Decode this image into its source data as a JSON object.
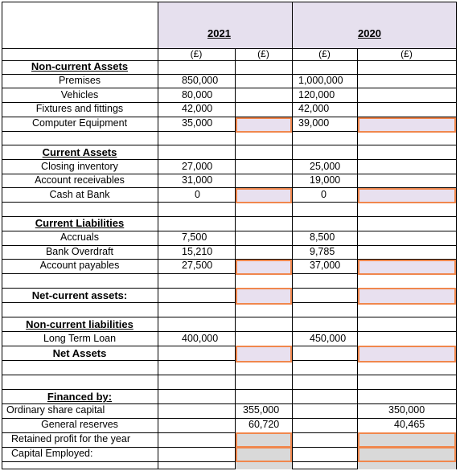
{
  "header": {
    "years": [
      "2021",
      "2020"
    ],
    "units": [
      "(£)",
      "(£)",
      "(£)",
      "(£)"
    ]
  },
  "sections": {
    "non_current_assets": {
      "heading": "Non-current Assets",
      "rows": [
        {
          "label": "Premises",
          "y2021": "850,000",
          "y2020": "1,000,000"
        },
        {
          "label": "Vehicles",
          "y2021": "80,000",
          "y2020": "120,000"
        },
        {
          "label": "Fixtures and fittings",
          "y2021": "42,000",
          "y2020": "42,000"
        },
        {
          "label": "Computer Equipment",
          "y2021": "35,000",
          "y2020": "39,000"
        }
      ]
    },
    "current_assets": {
      "heading": "Current Assets",
      "rows": [
        {
          "label": "Closing inventory",
          "y2021": "27,000",
          "y2020": "25,000"
        },
        {
          "label": "Account receivables",
          "y2021": "31,000",
          "y2020": "19,000"
        },
        {
          "label": "Cash at Bank",
          "y2021": "0",
          "y2020": "0"
        }
      ]
    },
    "current_liabilities": {
      "heading": "Current Liabilities",
      "rows": [
        {
          "label": "Accruals",
          "y2021": "7,500",
          "y2020": "8,500"
        },
        {
          "label": "Bank Overdraft",
          "y2021": "15,210",
          "y2020": "9,785"
        },
        {
          "label": "Account payables",
          "y2021": "27,500",
          "y2020": "37,000"
        }
      ]
    },
    "net_current_assets": {
      "label": "Net-current assets:"
    },
    "non_current_liabilities": {
      "heading": "Non-current liabilities",
      "rows": [
        {
          "label": "Long Term Loan",
          "y2021": "400,000",
          "y2020": "450,000"
        }
      ],
      "net_assets_label": "Net Assets"
    },
    "financed_by": {
      "heading": "Financed by:",
      "rows": [
        {
          "label": "Ordinary share capital",
          "y2021": "355,000",
          "y2020": "350,000"
        },
        {
          "label": "General reserves",
          "y2021": "60,720",
          "y2020": "40,465"
        },
        {
          "label": "Retained profit for the year",
          "y2021": "",
          "y2020": ""
        },
        {
          "label": "Capital Employed:",
          "y2021": "",
          "y2020": ""
        }
      ]
    }
  },
  "colors": {
    "header_band": "#e6e0ee",
    "answer_box_border": "#f0874d",
    "answer_box_fill": "#e8e0ef",
    "answer_box_fill_grey": "#d9d9d9"
  }
}
